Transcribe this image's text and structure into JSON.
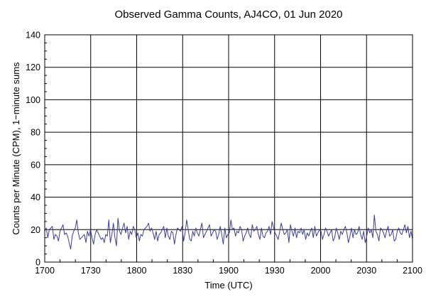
{
  "chart_data": {
    "type": "line",
    "title": "Observed Gamma Counts, AJ4CO, 01 Jun 2020",
    "xlabel": "Time (UTC)",
    "ylabel": "Counts per Minute (CPM), 1−minute sums",
    "xlim": [
      0,
      240
    ],
    "ylim": [
      0,
      140
    ],
    "x_ticks": [
      {
        "label": "1700",
        "minute": 0
      },
      {
        "label": "1730",
        "minute": 30
      },
      {
        "label": "1800",
        "minute": 60
      },
      {
        "label": "1830",
        "minute": 90
      },
      {
        "label": "1900",
        "minute": 120
      },
      {
        "label": "1930",
        "minute": 150
      },
      {
        "label": "2000",
        "minute": 180
      },
      {
        "label": "2030",
        "minute": 210
      },
      {
        "label": "2100",
        "minute": 240
      }
    ],
    "y_ticks": [
      0,
      20,
      40,
      60,
      80,
      100,
      120,
      140
    ],
    "grid": true,
    "line_color": "#3a3a9c",
    "series": [
      {
        "values": [
          19,
          21,
          15,
          20,
          21,
          22,
          14,
          17,
          16,
          13,
          19,
          21,
          23,
          17,
          18,
          16,
          12,
          8,
          16,
          19,
          21,
          26,
          18,
          14,
          15,
          16,
          17,
          12,
          19,
          16,
          20,
          15,
          11,
          17,
          20,
          18,
          16,
          14,
          15,
          12,
          17,
          16,
          26,
          12,
          17,
          24,
          15,
          10,
          27,
          19,
          17,
          21,
          24,
          18,
          22,
          14,
          19,
          17,
          22,
          20,
          15,
          18,
          13,
          17,
          16,
          20,
          21,
          22,
          24,
          19,
          21,
          18,
          14,
          19,
          13,
          17,
          18,
          20,
          22,
          15,
          21,
          16,
          14,
          19,
          18,
          11,
          17,
          21,
          20,
          19,
          22,
          13,
          18,
          26,
          20,
          14,
          13,
          19,
          16,
          21,
          18,
          16,
          20,
          24,
          15,
          17,
          19,
          21,
          23,
          16,
          18,
          20,
          19,
          14,
          17,
          22,
          17,
          11,
          21,
          15,
          17,
          18,
          26,
          20,
          21,
          16,
          19,
          18,
          22,
          20,
          13,
          16,
          18,
          21,
          17,
          15,
          23,
          19,
          20,
          22,
          17,
          14,
          21,
          16,
          15,
          18,
          19,
          22,
          17,
          25,
          21,
          18,
          16,
          14,
          19,
          24,
          20,
          17,
          18,
          20,
          12,
          23,
          19,
          16,
          21,
          15,
          19,
          18,
          21,
          17,
          20,
          14,
          18,
          16,
          19,
          21,
          15,
          22,
          16,
          18,
          20,
          19,
          14,
          17,
          21,
          19,
          16,
          18,
          20,
          13,
          15,
          21,
          18,
          14,
          19,
          17,
          20,
          22,
          18,
          12,
          16,
          21,
          15,
          20,
          17,
          18,
          22,
          17,
          14,
          19,
          12,
          16,
          21,
          18,
          20,
          15,
          29,
          19,
          17,
          13,
          21,
          20,
          18,
          15,
          19,
          22,
          16,
          17,
          20,
          13,
          14,
          19,
          21,
          18,
          17,
          20,
          23,
          18,
          22,
          15,
          19,
          14
        ]
      }
    ]
  }
}
